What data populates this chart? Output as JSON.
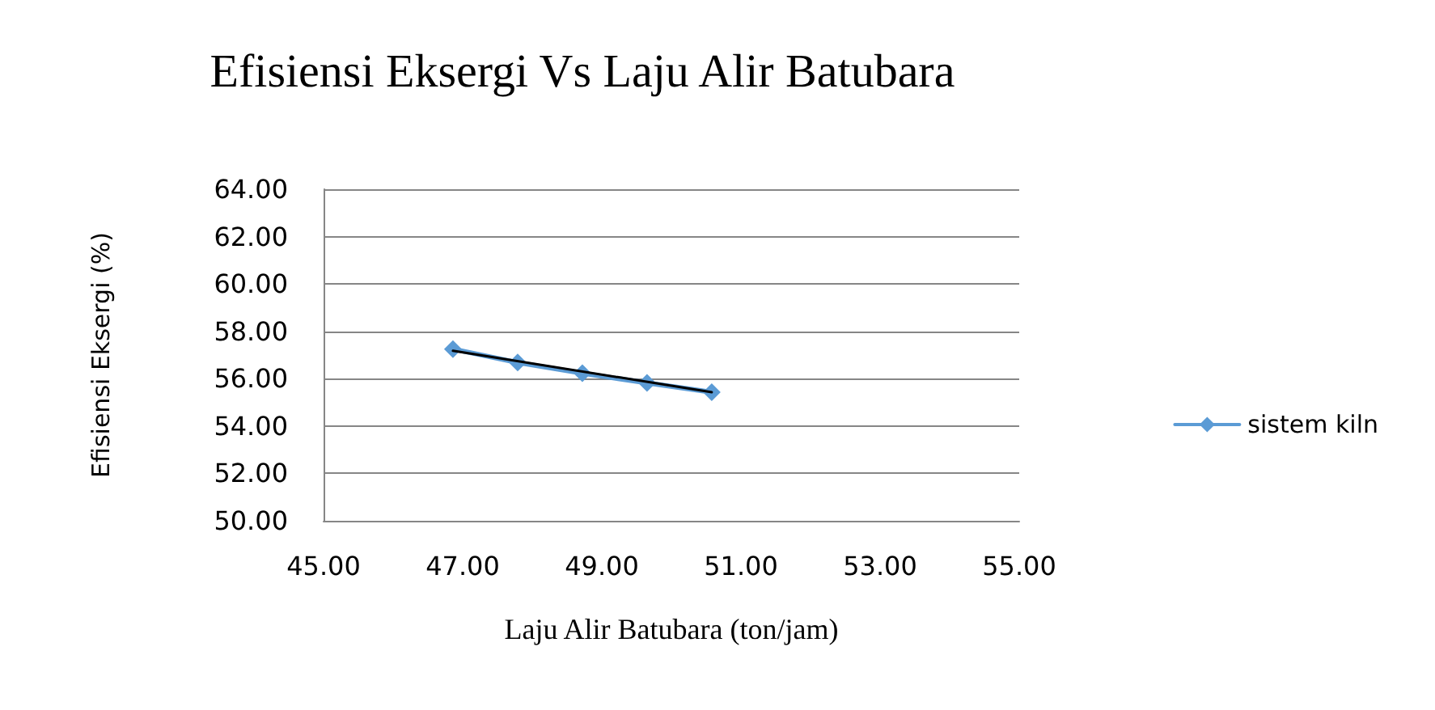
{
  "chart_data": {
    "type": "line",
    "title": "Efisiensi Eksergi Vs Laju Alir Batubara",
    "xlabel": "Laju Alir Batubara (ton/jam)",
    "ylabel": "Efisiensi Eksergi (%)",
    "xlim": [
      45,
      55
    ],
    "xticks": [
      {
        "value": 45,
        "label": "45.00"
      },
      {
        "value": 47,
        "label": "47.00"
      },
      {
        "value": 49,
        "label": "49.00"
      },
      {
        "value": 51,
        "label": "51.00"
      },
      {
        "value": 53,
        "label": "53.00"
      },
      {
        "value": 55,
        "label": "55.00"
      }
    ],
    "ylim": [
      50,
      64
    ],
    "yticks": [
      {
        "value": 50,
        "label": "50.00"
      },
      {
        "value": 52,
        "label": "52.00"
      },
      {
        "value": 54,
        "label": "54.00"
      },
      {
        "value": 56,
        "label": "56.00"
      },
      {
        "value": 58,
        "label": "58.00"
      },
      {
        "value": 60,
        "label": "60.00"
      },
      {
        "value": 62,
        "label": "62.00"
      },
      {
        "value": 64,
        "label": "64.00"
      }
    ],
    "grid": "y",
    "legend": "right",
    "series": [
      {
        "name": "sistem kiln",
        "color": "#5b9bd5",
        "marker": "diamond",
        "x": [
          46.86,
          47.79,
          48.72,
          49.65,
          50.58
        ],
        "values": [
          57.25,
          56.68,
          56.23,
          55.82,
          55.43
        ]
      },
      {
        "color": "#000000",
        "marker": "none",
        "x": [
          46.86,
          50.58
        ],
        "values": [
          57.18,
          55.43
        ]
      }
    ]
  }
}
